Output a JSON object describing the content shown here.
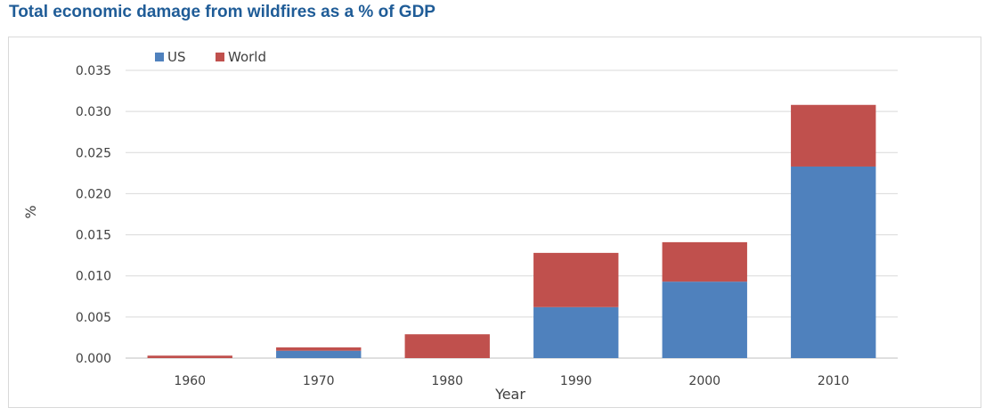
{
  "chart_data": {
    "type": "bar",
    "stacked": true,
    "title": "Total economic damage from wildfires as a % of GDP",
    "xlabel": "Year",
    "ylabel": "%",
    "categories": [
      "1960",
      "1970",
      "1980",
      "1990",
      "2000",
      "2010"
    ],
    "series": [
      {
        "name": "US",
        "color": "#4f81bd",
        "values": [
          0.0,
          0.0009,
          0.0,
          0.0062,
          0.0093,
          0.0233
        ]
      },
      {
        "name": "World",
        "color": "#c0504d",
        "values": [
          0.0003,
          0.0004,
          0.0029,
          0.0066,
          0.0048,
          0.0075
        ]
      }
    ],
    "ylim": [
      0,
      0.035
    ],
    "yticks": [
      "0.000",
      "0.005",
      "0.010",
      "0.015",
      "0.020",
      "0.025",
      "0.030",
      "0.035"
    ],
    "grid": true,
    "legend": "top-left"
  }
}
